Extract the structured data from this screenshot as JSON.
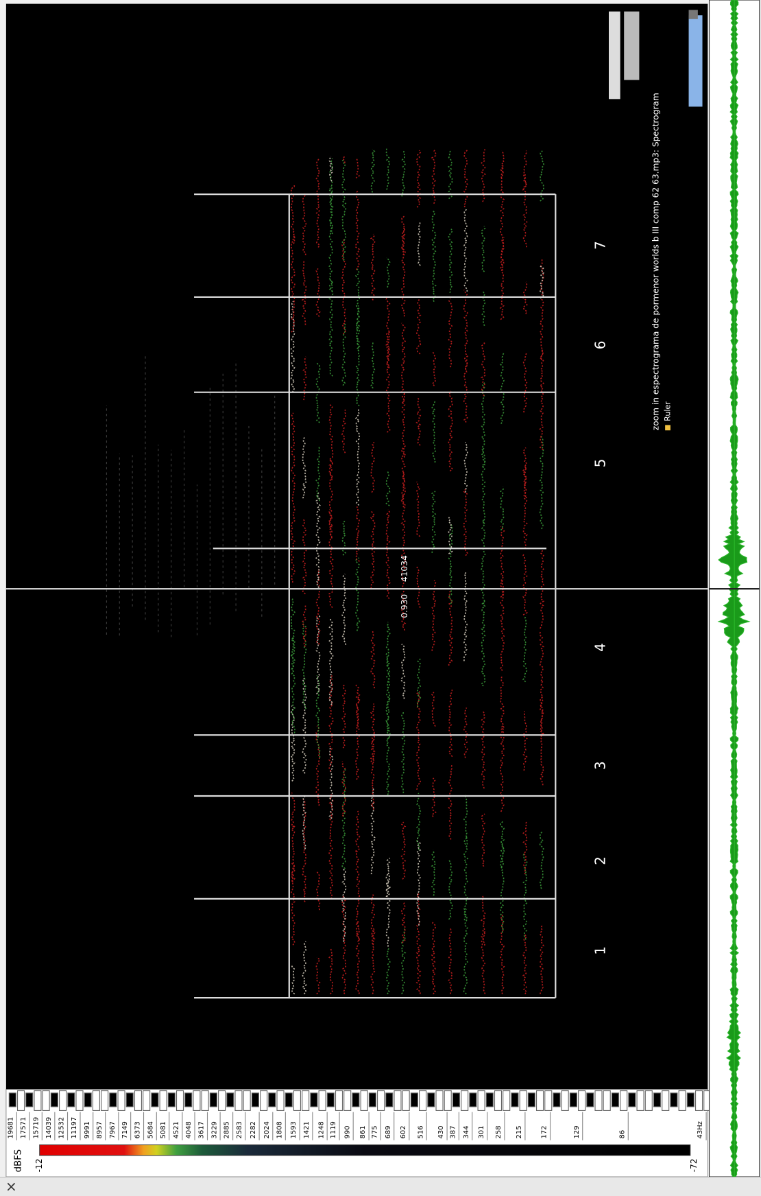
{
  "layer_title": "zoom in espectrograma de pormenor worlds b III comp 62 63.mp3: Spectrogram",
  "layer_legend": "Ruler",
  "color_scale": {
    "unit": "dBFS",
    "max_label": "-12",
    "min_label": "-72"
  },
  "frequency_labels": [
    "19681",
    "17571",
    "15719",
    "14039",
    "12532",
    "11197",
    "9991",
    "8957",
    "7967",
    "7149",
    "6373",
    "5684",
    "5081",
    "4521",
    "4048",
    "3617",
    "3229",
    "2885",
    "2583",
    "2282",
    "2024",
    "1808",
    "1593",
    "1421",
    "1248",
    "1119",
    "990",
    "861",
    "775",
    "689",
    "602",
    "516",
    "430",
    "387",
    "344",
    "301",
    "258",
    "215",
    "172",
    "129",
    "86",
    "43Hz"
  ],
  "playhead": {
    "time": "0.930",
    "frame": "41034"
  },
  "sections": [
    "1",
    "2",
    "3",
    "4",
    "5",
    "6",
    "7"
  ],
  "close_button": "×"
}
